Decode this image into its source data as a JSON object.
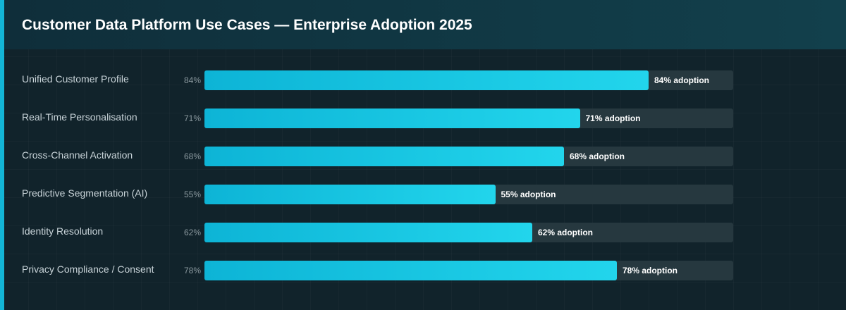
{
  "header": {
    "title": "Customer Data Platform Use Cases — Enterprise Adoption 2025"
  },
  "colors": {
    "bar": "#0db4d6",
    "bar_end": "#22d5ec",
    "track": "#26383f",
    "accent": "#13b5d6",
    "background": "#11232b"
  },
  "chart_data": {
    "type": "bar",
    "orientation": "horizontal",
    "title": "Customer Data Platform Use Cases — Enterprise Adoption 2025",
    "xlim": [
      0,
      100
    ],
    "grid": false,
    "categories": [
      "Unified Customer Profile",
      "Real-Time Personalisation",
      "Cross-Channel Activation",
      "Predictive Segmentation (AI)",
      "Identity Resolution",
      "Privacy Compliance / Consent"
    ],
    "values": [
      84,
      71,
      68,
      55,
      62,
      78
    ],
    "pct_labels": [
      "84%",
      "71%",
      "68%",
      "55%",
      "62%",
      "78%"
    ],
    "data_labels": [
      "84% adoption",
      "71% adoption",
      "68% adoption",
      "55% adoption",
      "62% adoption",
      "78% adoption"
    ]
  }
}
